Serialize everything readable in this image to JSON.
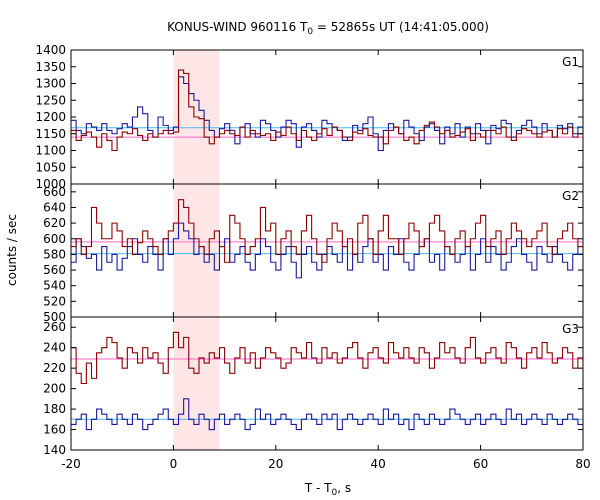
{
  "chart_data": {
    "type": "line",
    "title": "KONUS-WIND 960116 T",
    "title_sub": "0",
    "title_rest": " = 52865s UT (14:41:05.000)",
    "ylabel": "counts / sec",
    "xlabel_main": "T - T",
    "xlabel_sub": "0",
    "xlabel_end": ", s",
    "xlim": [
      -20,
      80
    ],
    "x_ticks": [
      "-20",
      "0",
      "20",
      "40",
      "60",
      "80"
    ],
    "highlight_interval": [
      0,
      9
    ],
    "colors": {
      "red_series": "#8b0000",
      "blue_series": "#1a1aa0",
      "red_level": "#ff66cc",
      "blue_level": "#44bbee",
      "highlight": "#ffe6e6"
    },
    "panels": [
      {
        "label": "G1",
        "ylim": [
          1000,
          1400
        ],
        "y_ticks": [
          "1000",
          "1050",
          "1100",
          "1150",
          "1200",
          "1250",
          "1300",
          "1350",
          "1400"
        ],
        "red_level": 1140,
        "blue_level": 1168,
        "red_values": [
          1160,
          1130,
          1145,
          1155,
          1140,
          1110,
          1150,
          1130,
          1100,
          1140,
          1155,
          1150,
          1165,
          1145,
          1130,
          1150,
          1140,
          1150,
          1160,
          1150,
          1155,
          1340,
          1330,
          1230,
          1200,
          1195,
          1140,
          1120,
          1140,
          1150,
          1160,
          1150,
          1145,
          1170,
          1140,
          1160,
          1150,
          1145,
          1150,
          1130,
          1155,
          1145,
          1170,
          1150,
          1130,
          1160,
          1140,
          1130,
          1150,
          1165,
          1145,
          1170,
          1160,
          1140,
          1130,
          1155,
          1150,
          1165,
          1145,
          1140,
          1140,
          1120,
          1160,
          1170,
          1150,
          1130,
          1140,
          1120,
          1160,
          1175,
          1185,
          1170,
          1150,
          1160,
          1140,
          1145,
          1155,
          1165,
          1130,
          1150,
          1140,
          1160,
          1160,
          1150,
          1170,
          1140,
          1130,
          1150,
          1165,
          1160,
          1150,
          1140,
          1155,
          1160,
          1140,
          1165,
          1150,
          1170,
          1140,
          1150
        ],
        "blue_values": [
          1190,
          1160,
          1150,
          1180,
          1170,
          1160,
          1180,
          1160,
          1150,
          1165,
          1180,
          1170,
          1200,
          1230,
          1210,
          1160,
          1140,
          1200,
          1175,
          1160,
          1170,
          1320,
          1300,
          1270,
          1250,
          1220,
          1190,
          1160,
          1140,
          1165,
          1180,
          1160,
          1120,
          1170,
          1180,
          1150,
          1140,
          1190,
          1180,
          1160,
          1140,
          1170,
          1190,
          1180,
          1110,
          1170,
          1180,
          1160,
          1140,
          1190,
          1180,
          1170,
          1160,
          1130,
          1140,
          1175,
          1160,
          1180,
          1200,
          1150,
          1100,
          1160,
          1180,
          1170,
          1150,
          1190,
          1170,
          1150,
          1130,
          1170,
          1180,
          1160,
          1120,
          1170,
          1150,
          1180,
          1140,
          1170,
          1150,
          1180,
          1160,
          1120,
          1175,
          1165,
          1190,
          1180,
          1140,
          1160,
          1175,
          1190,
          1170,
          1150,
          1180,
          1160,
          1140,
          1175,
          1165,
          1180,
          1150,
          1170
        ]
      },
      {
        "label": "G2",
        "ylim": [
          500,
          670
        ],
        "y_ticks": [
          "500",
          "520",
          "540",
          "560",
          "580",
          "600",
          "620",
          "640",
          "660"
        ],
        "red_level": 596,
        "blue_level": 581,
        "red_values": [
          590,
          600,
          580,
          590,
          640,
          620,
          600,
          600,
          620,
          610,
          590,
          600,
          580,
          595,
          610,
          600,
          590,
          580,
          600,
          610,
          620,
          650,
          640,
          620,
          600,
          590,
          580,
          600,
          610,
          590,
          570,
          630,
          620,
          600,
          580,
          590,
          600,
          640,
          610,
          620,
          580,
          600,
          610,
          590,
          580,
          610,
          630,
          600,
          580,
          570,
          600,
          620,
          610,
          590,
          600,
          580,
          620,
          630,
          600,
          580,
          610,
          630,
          600,
          600,
          580,
          600,
          620,
          610,
          590,
          600,
          620,
          630,
          610,
          590,
          580,
          600,
          610,
          590,
          600,
          620,
          630,
          590,
          600,
          610,
          580,
          600,
          620,
          610,
          600,
          590,
          600,
          610,
          620,
          590,
          580,
          600,
          610,
          620,
          600,
          590
        ],
        "blue_values": [
          570,
          600,
          590,
          575,
          580,
          560,
          590,
          570,
          580,
          560,
          575,
          590,
          600,
          580,
          570,
          590,
          580,
          560,
          600,
          580,
          600,
          620,
          610,
          600,
          580,
          590,
          570,
          580,
          560,
          590,
          600,
          570,
          580,
          590,
          570,
          560,
          580,
          600,
          590,
          570,
          560,
          580,
          590,
          570,
          550,
          580,
          590,
          570,
          560,
          580,
          590,
          580,
          570,
          590,
          560,
          580,
          570,
          590,
          600,
          570,
          580,
          560,
          590,
          580,
          600,
          570,
          560,
          580,
          590,
          600,
          570,
          580,
          560,
          590,
          580,
          570,
          580,
          590,
          560,
          580,
          600,
          570,
          590,
          580,
          560,
          570,
          590,
          600,
          580,
          570,
          560,
          590,
          580,
          570,
          590,
          580,
          570,
          560,
          580,
          590
        ]
      },
      {
        "label": "G3",
        "ylim": [
          140,
          270
        ],
        "y_ticks": [
          "140",
          "160",
          "180",
          "200",
          "220",
          "240",
          "260"
        ],
        "red_level": 229,
        "blue_level": 170,
        "red_values": [
          240,
          215,
          205,
          225,
          210,
          235,
          240,
          250,
          245,
          230,
          220,
          240,
          235,
          225,
          240,
          230,
          235,
          225,
          215,
          240,
          255,
          240,
          250,
          220,
          215,
          230,
          225,
          235,
          230,
          240,
          225,
          215,
          230,
          240,
          225,
          235,
          220,
          230,
          240,
          235,
          230,
          220,
          225,
          240,
          235,
          230,
          245,
          230,
          225,
          240,
          230,
          235,
          225,
          230,
          240,
          245,
          230,
          220,
          235,
          240,
          230,
          225,
          245,
          235,
          230,
          240,
          230,
          225,
          240,
          235,
          220,
          230,
          245,
          235,
          240,
          230,
          225,
          240,
          250,
          230,
          225,
          235,
          240,
          230,
          225,
          245,
          240,
          230,
          220,
          235,
          240,
          230,
          245,
          235,
          225,
          230,
          240,
          235,
          220,
          230
        ],
        "blue_values": [
          165,
          170,
          175,
          160,
          170,
          180,
          175,
          170,
          165,
          175,
          170,
          165,
          175,
          170,
          160,
          165,
          170,
          175,
          180,
          170,
          165,
          175,
          190,
          170,
          165,
          175,
          170,
          160,
          170,
          175,
          165,
          170,
          175,
          170,
          160,
          165,
          180,
          170,
          175,
          165,
          170,
          175,
          170,
          165,
          160,
          170,
          175,
          170,
          165,
          175,
          170,
          175,
          160,
          170,
          175,
          170,
          165,
          170,
          175,
          170,
          165,
          180,
          170,
          175,
          165,
          170,
          160,
          175,
          170,
          165,
          175,
          170,
          165,
          170,
          180,
          175,
          170,
          165,
          170,
          175,
          165,
          170,
          175,
          170,
          165,
          180,
          170,
          175,
          165,
          170,
          175,
          170,
          165,
          175,
          170,
          165,
          170,
          175,
          170,
          165
        ]
      }
    ]
  }
}
